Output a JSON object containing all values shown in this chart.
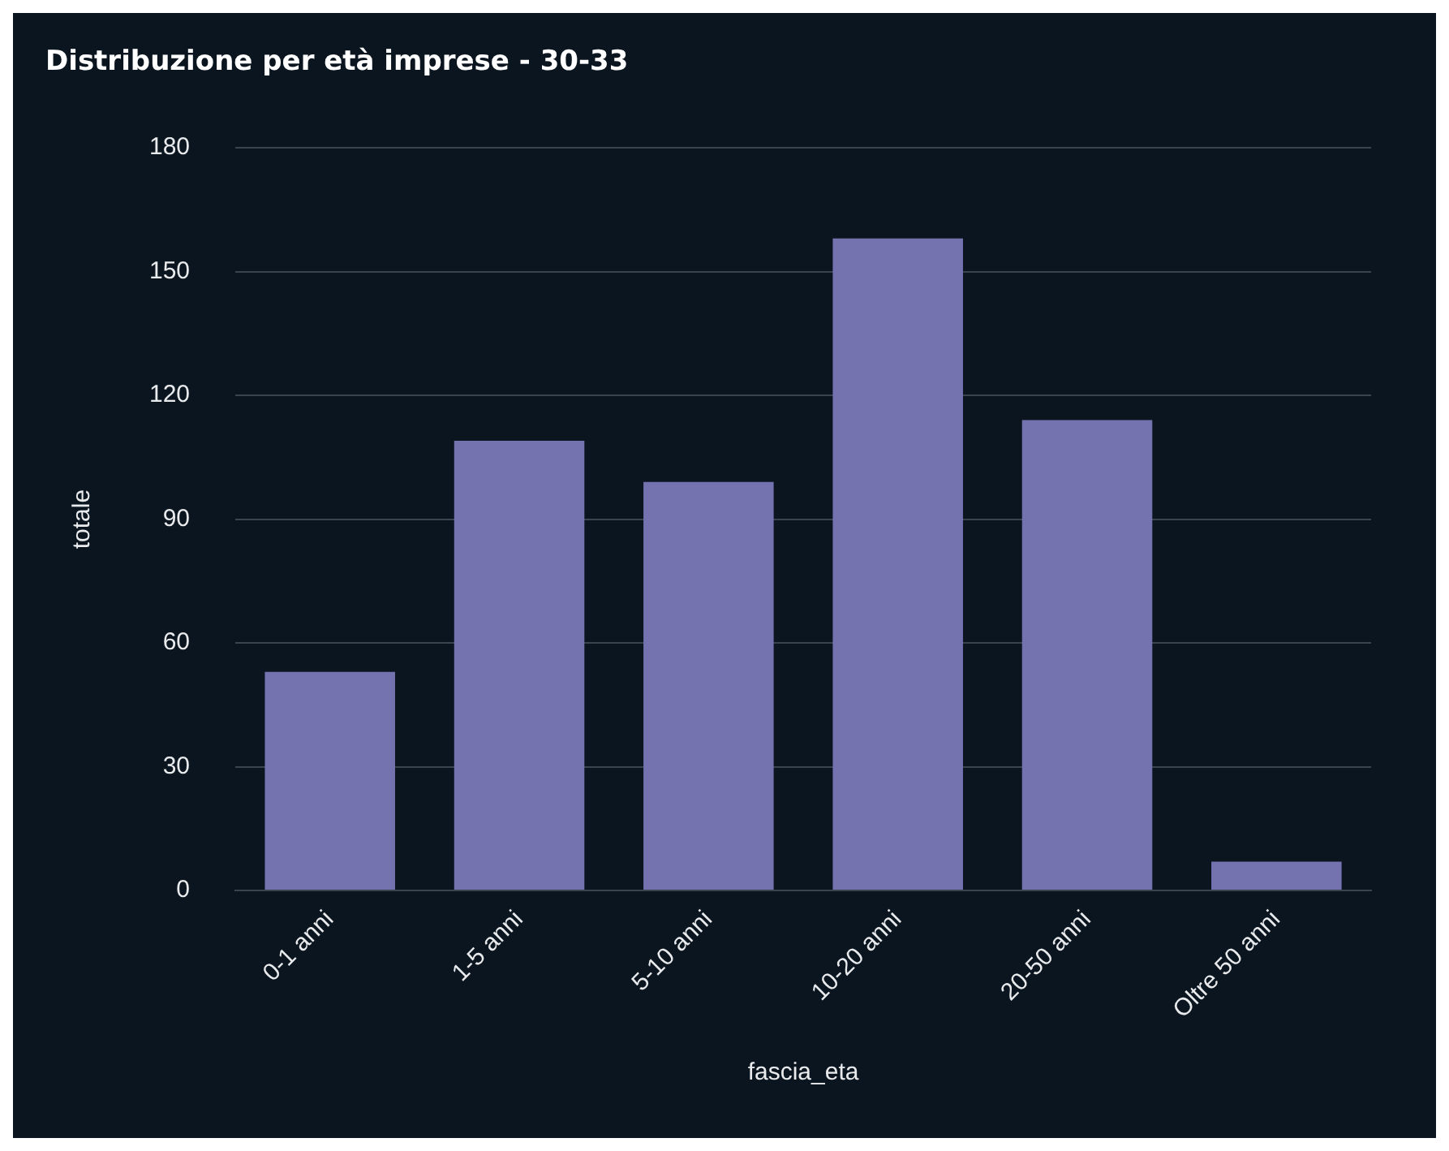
{
  "chart_data": {
    "type": "bar",
    "title": "Distribuzione per età imprese - 30-33",
    "xlabel": "fascia_eta",
    "ylabel": "totale",
    "categories": [
      "0-1 anni",
      "1-5 anni",
      "5-10 anni",
      "10-20 anni",
      "20-50 anni",
      "Oltre 50 anni"
    ],
    "values": [
      53,
      109,
      99,
      158,
      114,
      7
    ],
    "color": "#7473b0",
    "ylim": [
      0,
      180
    ],
    "yticks": [
      0,
      30,
      60,
      90,
      120,
      150,
      180
    ],
    "grid": "y"
  }
}
